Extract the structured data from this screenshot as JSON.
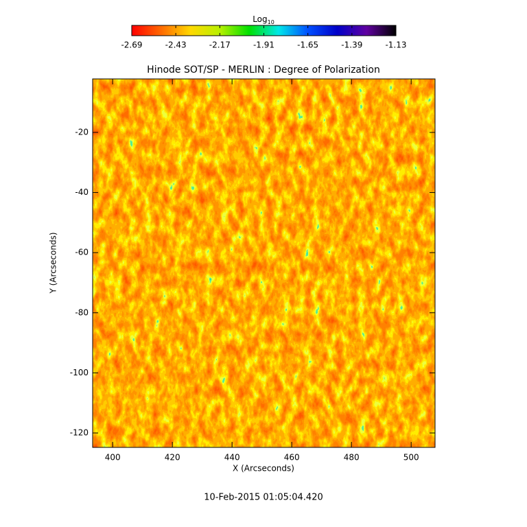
{
  "chart_data": {
    "type": "heatmap",
    "title": "Hinode SOT/SP - MERLIN : Degree of Polarization",
    "x_label": "X (Arcseconds)",
    "y_label": "Y (Arcseconds)",
    "footer": "10-Feb-2015 01:05:04.420",
    "colorbar_label": "Log",
    "colorbar_label_subscript": "10",
    "clim": [
      -2.69,
      -1.13
    ],
    "cticks": [
      -2.69,
      -2.43,
      -2.17,
      -1.91,
      -1.65,
      -1.39,
      -1.13
    ],
    "colorscale": [
      "#ff0000",
      "#ff6a00",
      "#ffd800",
      "#b8f000",
      "#00e000",
      "#00e8e8",
      "#0050ff",
      "#0000c8",
      "#6000a0",
      "#000000"
    ],
    "xlim": [
      393.3,
      508.0
    ],
    "ylim": [
      -124.8,
      -2.2
    ],
    "xticks": [
      400,
      420,
      440,
      460,
      480,
      500
    ],
    "yticks": [
      -20,
      -40,
      -60,
      -80,
      -100,
      -120
    ]
  }
}
